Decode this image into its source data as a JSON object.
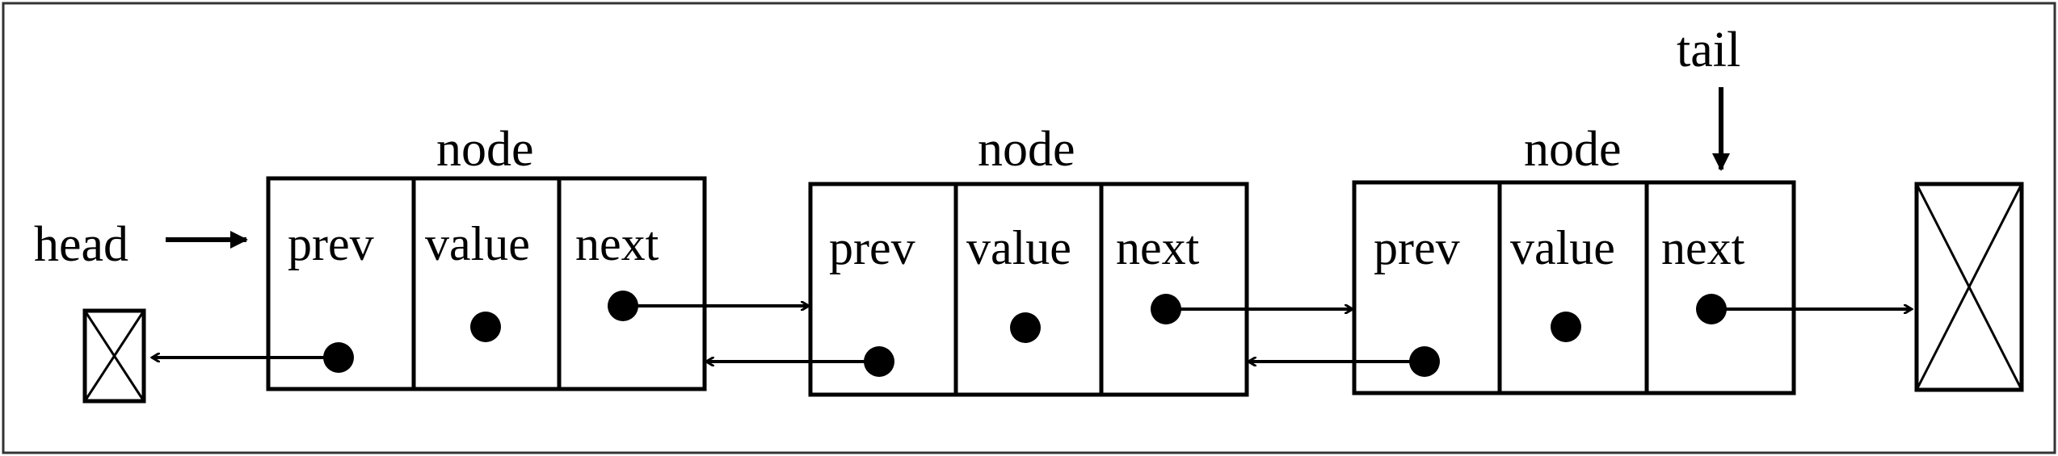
{
  "labels": {
    "head": "head",
    "tail": "tail"
  },
  "nodes": [
    {
      "title": "node",
      "fields": {
        "prev": "prev",
        "value": "value",
        "next": "next"
      }
    },
    {
      "title": "node",
      "fields": {
        "prev": "prev",
        "value": "value",
        "next": "next"
      }
    },
    {
      "title": "node",
      "fields": {
        "prev": "prev",
        "value": "value",
        "next": "next"
      }
    }
  ],
  "colors": {
    "stroke": "#000000",
    "background": "#ffffff",
    "frame": "#333333"
  }
}
